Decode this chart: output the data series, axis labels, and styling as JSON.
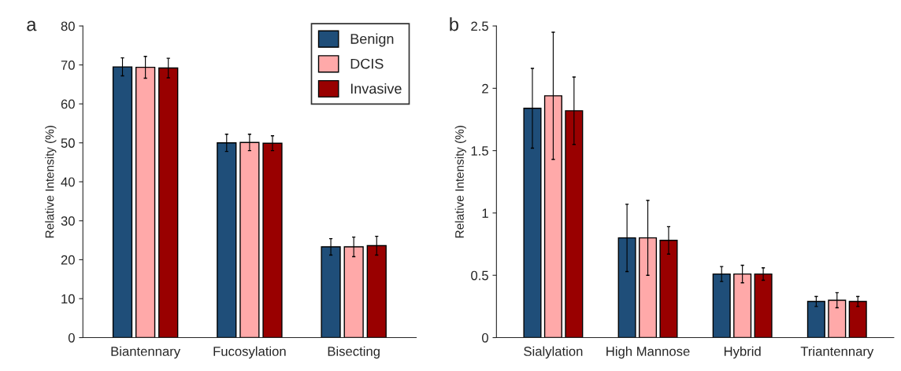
{
  "chart_data": [
    {
      "type": "bar",
      "title": "a",
      "ylabel": "Relative Intensity (%)",
      "categories": [
        "Biantennary",
        "Fucosylation",
        "Bisecting"
      ],
      "series": [
        {
          "name": "Benign",
          "color": "#1f4e79",
          "values": [
            69.5,
            50.0,
            23.3
          ],
          "errors": [
            2.3,
            2.2,
            2.1
          ]
        },
        {
          "name": "DCIS",
          "color": "#ffa9a9",
          "values": [
            69.4,
            50.1,
            23.3
          ],
          "errors": [
            2.8,
            2.1,
            2.5
          ]
        },
        {
          "name": "Invasive",
          "color": "#990000",
          "values": [
            69.2,
            49.9,
            23.6
          ],
          "errors": [
            2.5,
            1.9,
            2.4
          ]
        }
      ],
      "ylim": [
        0,
        80
      ],
      "yticks": [
        0,
        10,
        20,
        30,
        40,
        50,
        60,
        70,
        80
      ],
      "legend": "top right",
      "grid": false
    },
    {
      "type": "bar",
      "title": "b",
      "ylabel": "Relative Intensity (%)",
      "categories": [
        "Sialylation",
        "High Mannose",
        "Hybrid",
        "Triantennary"
      ],
      "series": [
        {
          "color": "#1f4e79",
          "values": [
            1.84,
            0.8,
            0.51,
            0.29
          ],
          "errors": [
            0.32,
            0.27,
            0.06,
            0.04
          ]
        },
        {
          "color": "#ffa9a9",
          "values": [
            1.94,
            0.8,
            0.51,
            0.3
          ],
          "errors": [
            0.51,
            0.3,
            0.07,
            0.06
          ]
        },
        {
          "color": "#990000",
          "values": [
            1.82,
            0.78,
            0.51,
            0.29
          ],
          "errors": [
            0.27,
            0.11,
            0.05,
            0.04
          ]
        }
      ],
      "ylim": [
        0,
        2.5
      ],
      "yticks": [
        0,
        {
          "value": 0.5,
          "label": "0.5"
        },
        1,
        {
          "value": 1.5,
          "label": "1.5"
        },
        2,
        {
          "value": 2.5,
          "label": "2.5"
        }
      ],
      "grid": false
    }
  ]
}
